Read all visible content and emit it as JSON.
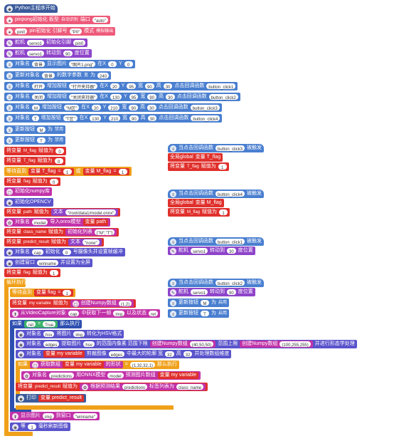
{
  "main": {
    "start": "Python主程序开始",
    "b1": {
      "a": "pinpong初始化 板型",
      "b": "自动识别",
      "c": "端口",
      "d": "\"auto\""
    },
    "b2": {
      "a": "pin0",
      "b": "pin初始化 引脚号",
      "c": "\"P0\"",
      "d": "模式",
      "e": "模拟输出"
    },
    "b3": {
      "a": "舵机",
      "b": "servo1",
      "c": "初始化引脚",
      "d": "pin0"
    },
    "b4": {
      "a": "舵机",
      "b": "servo1",
      "c": "转动到",
      "d": "90",
      "e": "度位置"
    },
    "b5": {
      "a": "对象名",
      "b": "背景",
      "c": "显示图片",
      "d": "\"图片1.png\"",
      "e": "在X",
      "f": "0",
      "g": "Y",
      "h": "0"
    },
    "b6": {
      "a": "更新对象名",
      "b": "背景",
      "c": "的数字参数",
      "d": "宽",
      "e": "为",
      "f": "240"
    },
    "b7": {
      "a": "对象名",
      "b": "打开",
      "c": "增加按钮",
      "d": "\"打开夹持器\"",
      "e": "在X",
      "f": "20",
      "g": "Y",
      "h": "95",
      "i": "宽",
      "j": "90",
      "k": "高",
      "l": "30",
      "m": "点击回调函数",
      "n": "button_click1"
    },
    "b8": {
      "a": "对象名",
      "b": "关闭",
      "c": "增加按钮",
      "d": "\"关闭夹持器\"",
      "e": "在X",
      "f": "130",
      "g": "Y",
      "h": "95",
      "i": "宽",
      "j": "90",
      "k": "高",
      "l": "30",
      "m": "点击回调函数",
      "n": "button_click2"
    },
    "b9": {
      "a": "对象名",
      "b": "M",
      "c": "增加按钮",
      "d": "\"M区\"",
      "e": "在X",
      "f": "20",
      "g": "Y",
      "h": "210",
      "i": "宽",
      "j": "90",
      "k": "高",
      "l": "30",
      "m": "点击回调函数",
      "n": "button_click3"
    },
    "b10": {
      "a": "对象名",
      "b": "T",
      "c": "增加按钮",
      "d": "\"T区\"",
      "e": "在X",
      "f": "130",
      "g": "Y",
      "h": "210",
      "i": "宽",
      "j": "90",
      "k": "高",
      "l": "30",
      "m": "点击回调函数",
      "n": "button_click4"
    },
    "b11": {
      "a": "更新按钮",
      "b": "M",
      "c": "为",
      "d": "禁用"
    },
    "b12": {
      "a": "更新按钮",
      "b": "T",
      "c": "为",
      "d": "禁用"
    },
    "b13": {
      "a": "将变量",
      "b": "M_flag",
      "c": "赋值为",
      "d": "0"
    },
    "b14": {
      "a": "将变量",
      "b": "T_flag",
      "c": "赋值为",
      "d": "0"
    },
    "b15": {
      "a": "等待直到",
      "b": "变量 T_flag",
      "c": "=",
      "d": "1",
      "e": "或",
      "f": "变量 M_flag",
      "g": "=",
      "h": "1"
    },
    "b16": {
      "a": "将变量",
      "b": "flag",
      "c": "赋值为",
      "d": "0"
    },
    "b17": {
      "a": "初始化numpy库"
    },
    "b18": {
      "a": "初始化OPENCV"
    },
    "b19": {
      "a": "将变量",
      "b": "path",
      "c": "赋值为",
      "d": "文本",
      "e": "\"/root/data1/model.onnx\""
    },
    "b20": {
      "a": "对象名",
      "b": "model",
      "c": "导入onnx模型",
      "d": "变量 path"
    },
    "b21": {
      "a": "将变量",
      "b": "class_name",
      "c": "赋值为",
      "d": "初始化列表",
      "e": "[\"M\",\"T\"]"
    },
    "b22": {
      "a": "将变量",
      "b": "predict_result",
      "c": "赋值为",
      "d": "文本",
      "e": "\"none\""
    },
    "b23": {
      "a": "对象名",
      "b": "cap",
      "c": "初始化",
      "d": "0",
      "e": "号摄像头并设置帧缓冲"
    },
    "b24": {
      "a": "创建窗口",
      "b": "winname",
      "c": "并设置为全屏"
    },
    "b25": {
      "a": "将变量",
      "b": "flag",
      "c": "赋值为",
      "d": "1"
    },
    "b26": {
      "a": "循环执行"
    },
    "b27": {
      "a": "等待直到",
      "b": "变量 flag",
      "c": "=",
      "d": "1"
    },
    "b28": {
      "a": "将变量",
      "b": "my variable",
      "c": "赋值为",
      "d": "创建Numpy数组",
      "e": "(1,2)"
    },
    "b29": {
      "a": "从VideoCapture对象",
      "b": "cap",
      "c": "中获取下一帧",
      "d": "img",
      "e": "以及状态",
      "f": "ret"
    },
    "b30": {
      "a": "如果",
      "b": "ret",
      "c": "=",
      "d": "True",
      "e": "那么执行"
    },
    "b31": {
      "a": "对象名",
      "b": "hsv",
      "c": "将图片",
      "d": "img",
      "e": "转化为HSV格式"
    },
    "b32": {
      "a": "对象名",
      "b": "edges",
      "c": "提取图片",
      "d": "hsv",
      "e": "的范围内像素 范围下限",
      "f": "创建Numpy数组",
      "g": "(40,50,50)",
      "h": "范围上限",
      "i": "创建Numpy数组",
      "j": "(100,255,255)",
      "k": "并进行形态学处理"
    },
    "b33": {
      "a": "对象名",
      "b": "变量 my variable",
      "c": "剪裁图像",
      "d": "edges",
      "e": "中最大的轮廓 宽",
      "f": "32",
      "g": "高",
      "h": "32",
      "i": "并处理数组维度"
    },
    "b34": {
      "a": "如果",
      "b": "获取数组",
      "c": "变量 my variable",
      "d": "的形状",
      "e": "=",
      "f": "(1,32,32,1)",
      "g": "那么执行"
    },
    "b35": {
      "a": "对象名",
      "b": "predictions",
      "c": "用ONNX模型",
      "d": "model",
      "e": "预测图片数组",
      "f": "变量 my variable"
    },
    "b36": {
      "a": "将变量",
      "b": "predict_result",
      "c": "赋值为",
      "d": "根据预测结果",
      "e": "predictions",
      "f": "标签列表为",
      "g": "class_name"
    },
    "b37": {
      "a": "打印",
      "b": "变量 predict_result"
    },
    "b38": {
      "a": "显示图片",
      "b": "img",
      "c": "到窗口",
      "d": "\"winname\""
    },
    "b39": {
      "a": "等",
      "b": "1",
      "c": "毫秒刷新图像"
    }
  },
  "callbacks": {
    "c1": {
      "hat": "当点击回调函数",
      "name": "button_click3",
      "tail": "被触发",
      "r1": {
        "a": "全局global",
        "b": "变量 T_flag"
      },
      "r2": {
        "a": "将变量",
        "b": "T_flag",
        "c": "赋值为",
        "d": "1"
      }
    },
    "c2": {
      "hat": "当点击回调函数",
      "name": "button_click4",
      "tail": "被触发",
      "r1": {
        "a": "全局global",
        "b": "变量 M_flag"
      },
      "r2": {
        "a": "将变量",
        "b": "M_flag",
        "c": "赋值为",
        "d": "1"
      }
    },
    "c3": {
      "hat": "当点击回调函数",
      "name": "button_click1",
      "tail": "被触发",
      "r1": {
        "a": "舵机",
        "b": "servo1",
        "c": "转动到",
        "d": "30",
        "e": "度位置"
      }
    },
    "c4": {
      "hat": "当点击回调函数",
      "name": "button_click2",
      "tail": "被触发",
      "r1": {
        "a": "舵机",
        "b": "servo1",
        "c": "转动到",
        "d": "90",
        "e": "度位置"
      },
      "r2": {
        "a": "更新按钮",
        "b": "M",
        "c": "为",
        "d": "启用"
      },
      "r3": {
        "a": "更新按钮",
        "b": "T",
        "c": "为",
        "d": "启用"
      }
    }
  }
}
